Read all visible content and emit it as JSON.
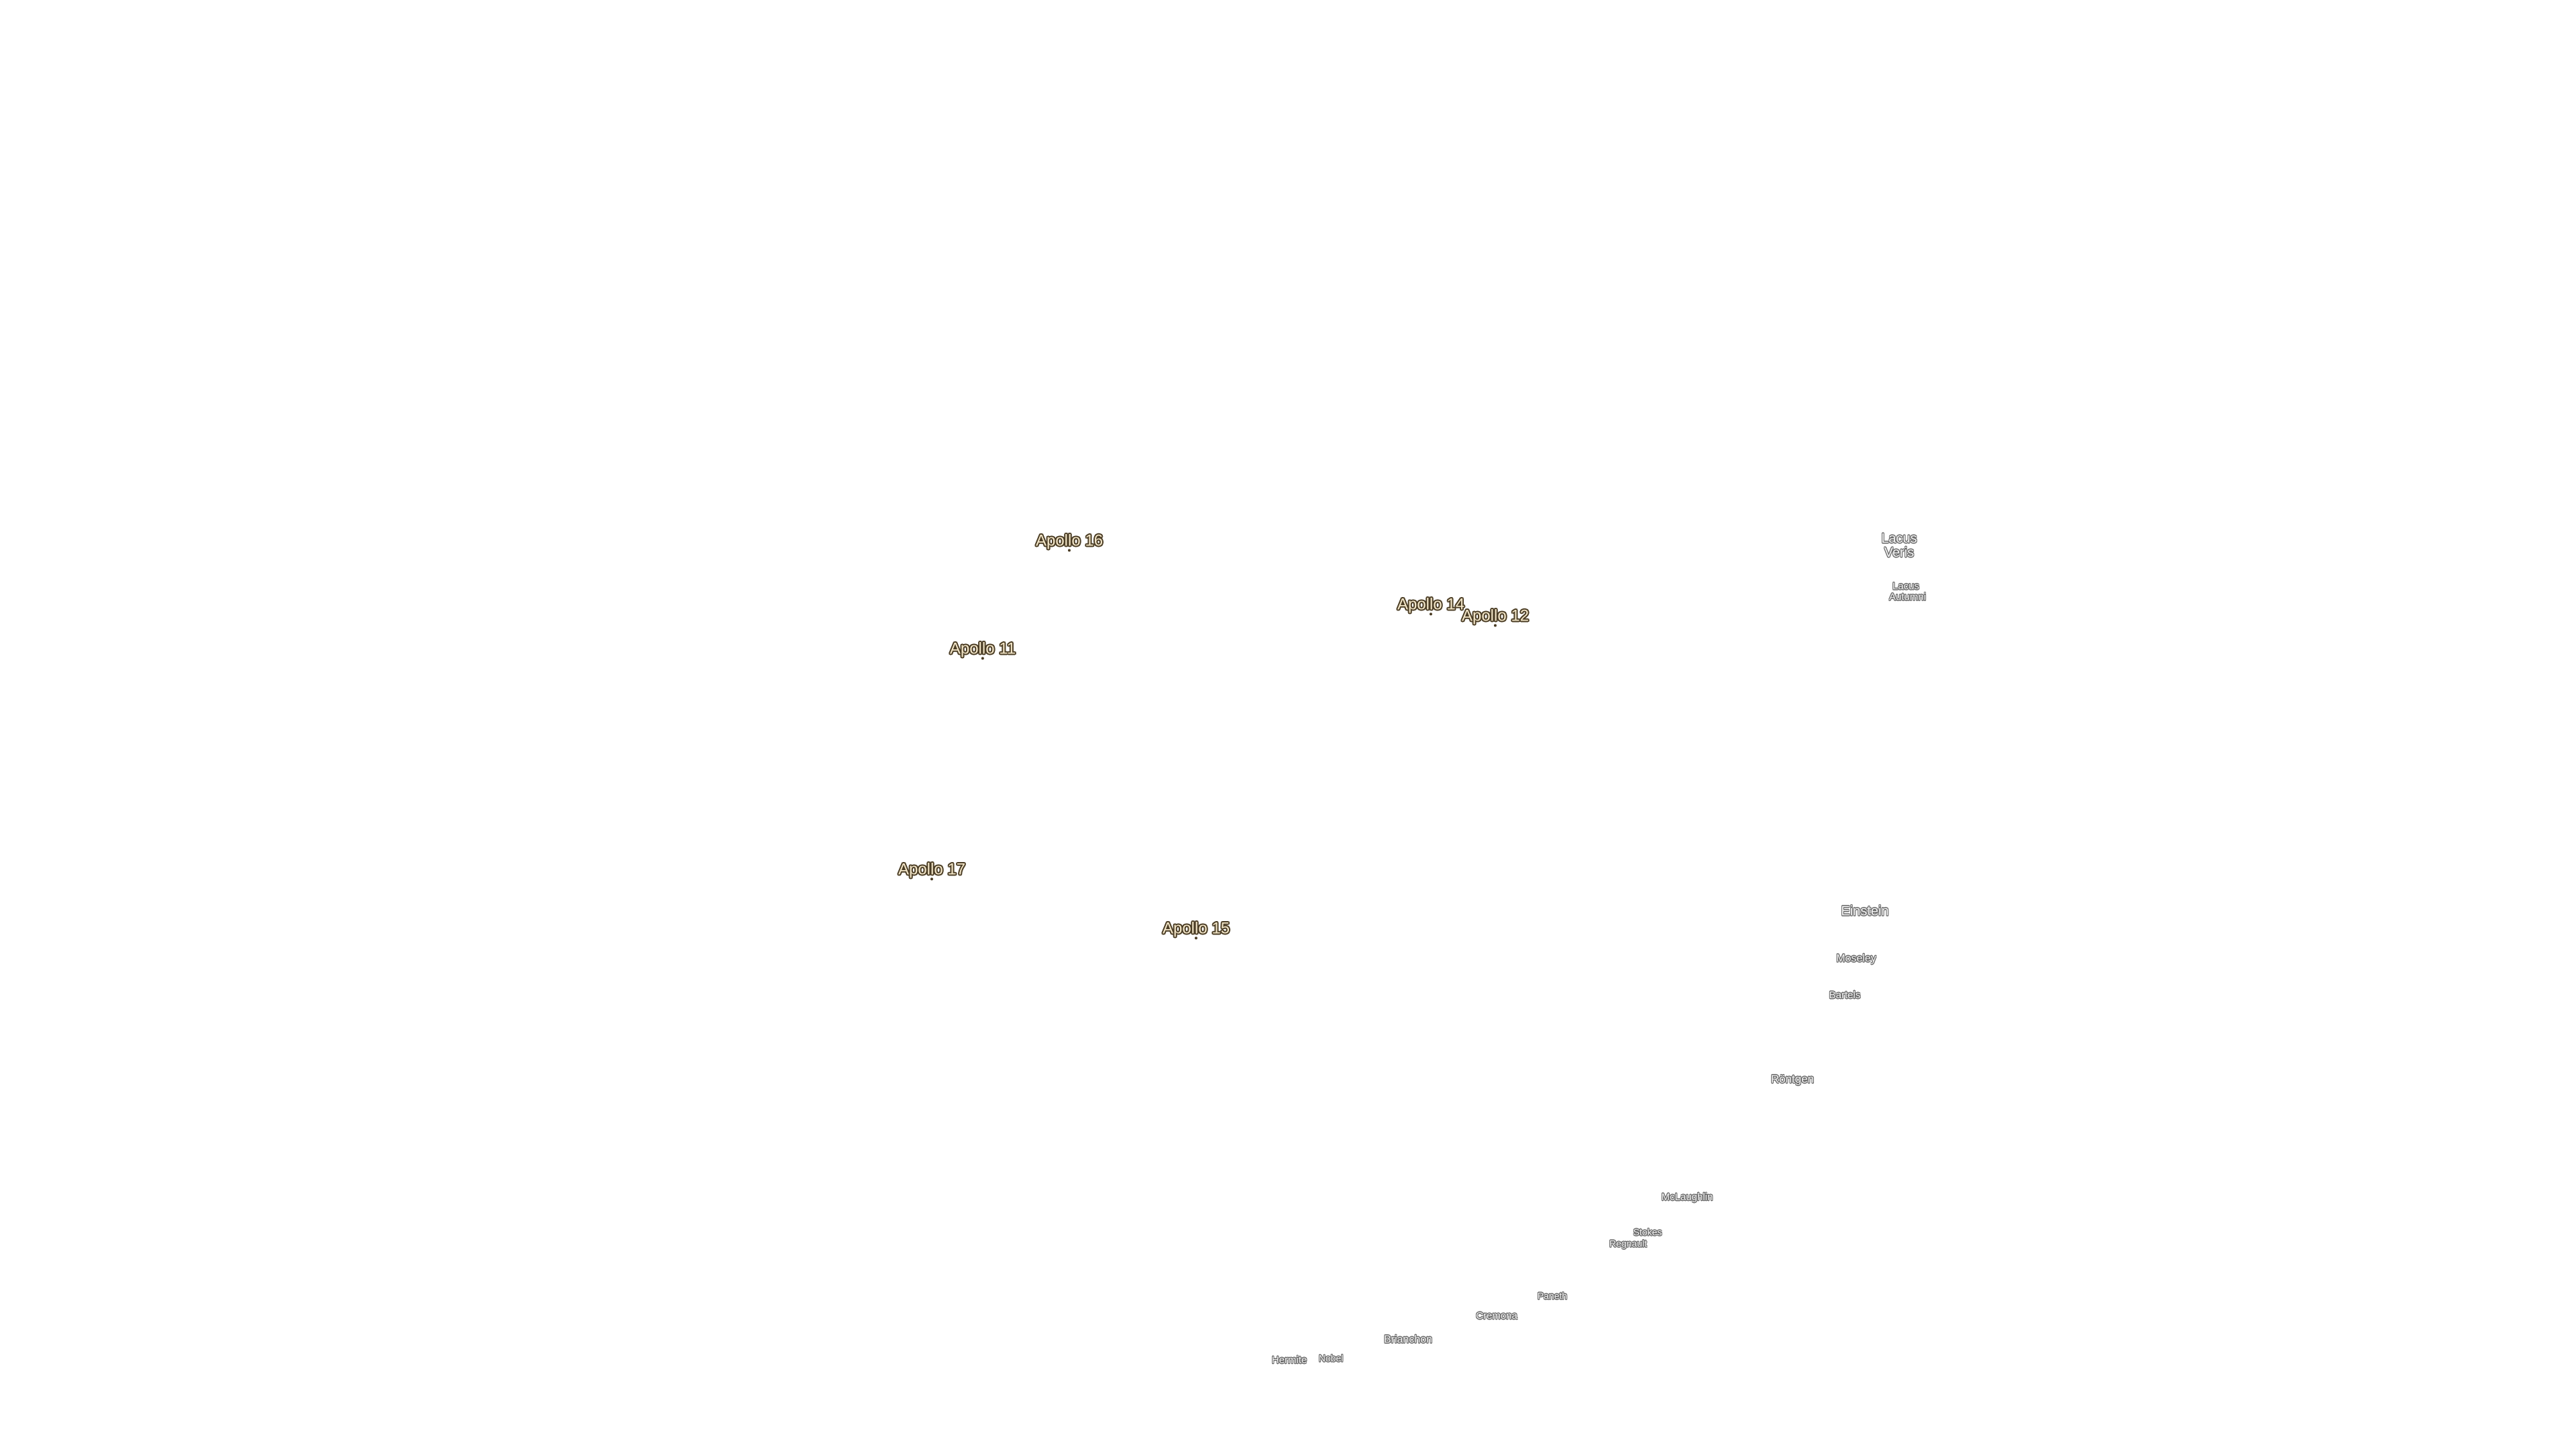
{
  "apollo_sites": [
    "Apollo 16",
    "Apollo 14",
    "Apollo 12",
    "Apollo 11",
    "Apollo 17",
    "Apollo 15"
  ],
  "features": [
    "Lacus Veris",
    "Lacus Autumni",
    "Einstein",
    "Moseley",
    "Bartels",
    "Röntgen",
    "McLaughlin",
    "Stokes",
    "Regnault",
    "Paneth",
    "Cremona",
    "Brianchon",
    "Hermite",
    "Nobel"
  ]
}
